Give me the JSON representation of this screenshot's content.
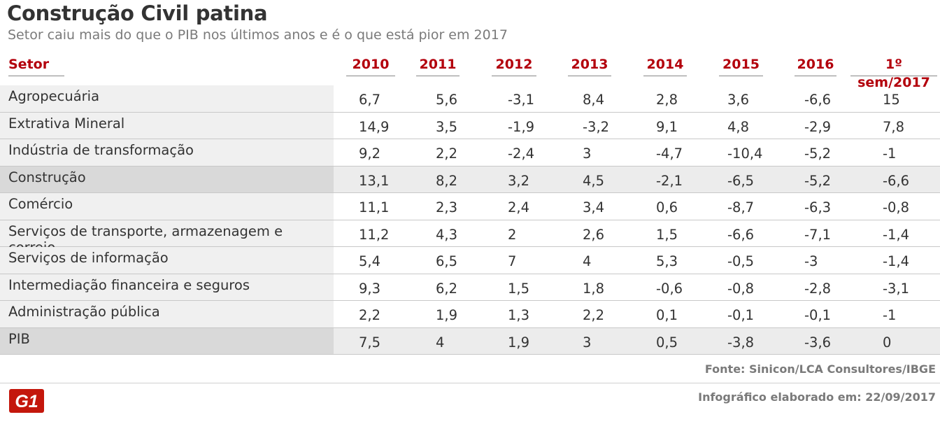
{
  "title": "Construção Civil patina",
  "subtitle": "Setor caiu mais do que o PIB nos últimos anos e é o que está pior em 2017",
  "source": "Fonte: Sinicon/LCA Consultores/IBGE",
  "footer_date": "Infográfico elaborado em: 22/09/2017",
  "logo_text": "G1",
  "colors": {
    "header_red": "#b3000c",
    "label_bg": "#f0f0f0",
    "highlight_bg": "#d9d9d9"
  },
  "chart_data": {
    "type": "table",
    "columns": [
      "Setor",
      "2010",
      "2011",
      "2012",
      "2013",
      "2014",
      "2015",
      "2016",
      "1º sem/2017"
    ],
    "rows": [
      {
        "label": "Agropecuária",
        "values": [
          "6,7",
          "5,6",
          "-3,1",
          "8,4",
          "2,8",
          "3,6",
          "-6,6",
          "15"
        ],
        "highlight": false
      },
      {
        "label": "Extrativa Mineral",
        "values": [
          "14,9",
          "3,5",
          "-1,9",
          "-3,2",
          "9,1",
          "4,8",
          "-2,9",
          "7,8"
        ],
        "highlight": false
      },
      {
        "label": "Indústria de transformação",
        "values": [
          "9,2",
          "2,2",
          "-2,4",
          "3",
          "-4,7",
          "-10,4",
          "-5,2",
          "-1"
        ],
        "highlight": false
      },
      {
        "label": "Construção",
        "values": [
          "13,1",
          "8,2",
          "3,2",
          "4,5",
          "-2,1",
          "-6,5",
          "-5,2",
          "-6,6"
        ],
        "highlight": true
      },
      {
        "label": "Comércio",
        "values": [
          "11,1",
          "2,3",
          "2,4",
          "3,4",
          "0,6",
          "-8,7",
          "-6,3",
          "-0,8"
        ],
        "highlight": false
      },
      {
        "label": "Serviços de transporte, armazenagem e correio",
        "values": [
          "11,2",
          "4,3",
          "2",
          "2,6",
          "1,5",
          "-6,6",
          "-7,1",
          "-1,4"
        ],
        "highlight": false
      },
      {
        "label": "Serviços de informação",
        "values": [
          "5,4",
          "6,5",
          "7",
          "4",
          "5,3",
          "-0,5",
          "-3",
          "-1,4"
        ],
        "highlight": false
      },
      {
        "label": "Intermediação financeira e seguros",
        "values": [
          "9,3",
          "6,2",
          "1,5",
          "1,8",
          "-0,6",
          "-0,8",
          "-2,8",
          "-3,1"
        ],
        "highlight": false
      },
      {
        "label": "Administração pública",
        "values": [
          "2,2",
          "1,9",
          "1,3",
          "2,2",
          "0,1",
          "-0,1",
          "-0,1",
          "-1"
        ],
        "highlight": false
      },
      {
        "label": "PIB",
        "values": [
          "7,5",
          "4",
          "1,9",
          "3",
          "0,5",
          "-3,8",
          "-3,6",
          "0"
        ],
        "highlight": true
      }
    ]
  }
}
